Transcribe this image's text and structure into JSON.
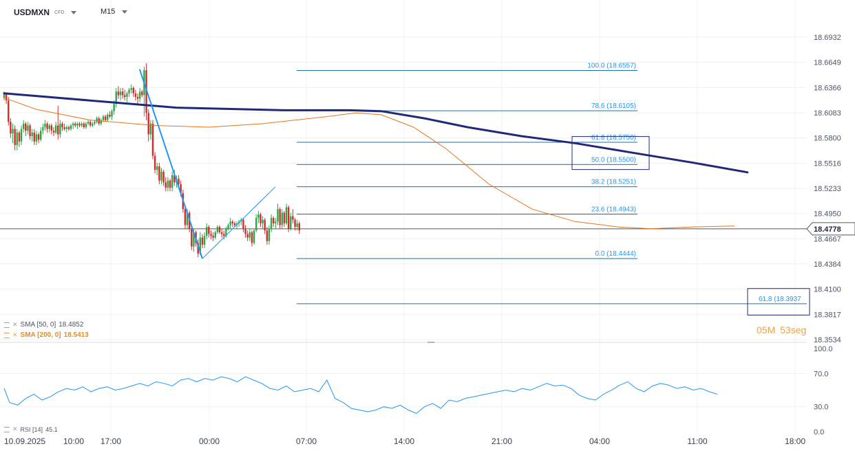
{
  "header": {
    "symbol": "USDMXN",
    "symbol_type": "CFD",
    "timeframe": "M15"
  },
  "indicators": {
    "sma50_label": "SMA [50, 0]",
    "sma50_value": "18.4852",
    "sma200_label": "SMA [200, 0]",
    "sma200_value": "18.5413",
    "rsi_label": "RSI [14]",
    "rsi_value": "45.1"
  },
  "countdown": {
    "minutes": "05",
    "minutes_unit": "M",
    "seconds": "53",
    "seconds_unit": "seg"
  },
  "colors": {
    "candle_up": "#27a844",
    "candle_down": "#d12a2a",
    "sma50": "#e8731a",
    "sma200": "#1e2a78",
    "fib_line": "#1f6fa8",
    "fib_label": "#2196f3",
    "rsi_line": "#2196f3",
    "price_line": "#555555"
  },
  "chart_data": {
    "type": "candlestick",
    "symbol": "USDMXN",
    "timeframe": "M15",
    "current_price": "18.4778",
    "ylim": [
      18.3534,
      18.6932
    ],
    "y_ticks": [
      "18.6932",
      "18.6649",
      "18.6366",
      "18.6083",
      "18.5800",
      "18.5516",
      "18.5233",
      "18.4950",
      "18.4667",
      "18.4384",
      "18.4100",
      "18.3817",
      "18.3534"
    ],
    "x_ticks": [
      "10.09.2025",
      "10:00",
      "17:00",
      "00:00",
      "07:00",
      "14:00",
      "21:00",
      "04:00",
      "11:00",
      "18:00"
    ],
    "rsi_ticks": [
      "100.0",
      "70.0",
      "30.0",
      "0.0"
    ],
    "rsi_ylim": [
      0,
      100
    ],
    "fibonacci": [
      {
        "label": "100.0 (18.6557)",
        "level": 18.6557
      },
      {
        "label": "78.6 (18.6105)",
        "level": 18.6105
      },
      {
        "label": "61.8 (18.5750)",
        "level": 18.575
      },
      {
        "label": "50.0 (18.5500)",
        "level": 18.55
      },
      {
        "label": "38.2 (18.5251)",
        "level": 18.5251
      },
      {
        "label": "23.6 (18.4943)",
        "level": 18.4943
      },
      {
        "label": "0.0 (18.4444)",
        "level": 18.4444
      },
      {
        "label": "61.8 (18.3937",
        "level": 18.3937
      }
    ],
    "candles": [
      [
        18.625,
        18.632,
        18.622,
        18.629
      ],
      [
        18.629,
        18.63,
        18.618,
        18.622
      ],
      [
        18.622,
        18.626,
        18.594,
        18.598
      ],
      [
        18.598,
        18.602,
        18.58,
        18.585
      ],
      [
        18.585,
        18.596,
        18.574,
        18.59
      ],
      [
        18.59,
        18.594,
        18.566,
        18.572
      ],
      [
        18.572,
        18.59,
        18.566,
        18.586
      ],
      [
        18.586,
        18.588,
        18.57,
        18.576
      ],
      [
        18.576,
        18.594,
        18.572,
        18.59
      ],
      [
        18.59,
        18.6,
        18.586,
        18.596
      ],
      [
        18.596,
        18.598,
        18.582,
        18.588
      ],
      [
        18.588,
        18.598,
        18.584,
        18.594
      ],
      [
        18.594,
        18.596,
        18.578,
        18.582
      ],
      [
        18.582,
        18.59,
        18.576,
        18.586
      ],
      [
        18.586,
        18.59,
        18.572,
        18.576
      ],
      [
        18.576,
        18.588,
        18.572,
        18.584
      ],
      [
        18.584,
        18.586,
        18.574,
        18.578
      ],
      [
        18.578,
        18.592,
        18.576,
        18.588
      ],
      [
        18.588,
        18.596,
        18.584,
        18.592
      ],
      [
        18.592,
        18.6,
        18.588,
        18.596
      ],
      [
        18.596,
        18.598,
        18.586,
        18.59
      ],
      [
        18.59,
        18.596,
        18.586,
        18.594
      ],
      [
        18.594,
        18.596,
        18.584,
        18.588
      ],
      [
        18.588,
        18.592,
        18.582,
        18.586
      ],
      [
        18.586,
        18.598,
        18.584,
        18.594
      ],
      [
        18.594,
        18.616,
        18.578,
        18.584
      ],
      [
        18.584,
        18.6,
        18.58,
        18.596
      ],
      [
        18.596,
        18.598,
        18.588,
        18.592
      ],
      [
        18.592,
        18.596,
        18.588,
        18.59
      ],
      [
        18.59,
        18.594,
        18.586,
        18.592
      ],
      [
        18.592,
        18.594,
        18.588,
        18.59
      ],
      [
        18.59,
        18.596,
        18.588,
        18.594
      ],
      [
        18.594,
        18.598,
        18.59,
        18.596
      ],
      [
        18.596,
        18.598,
        18.592,
        18.594
      ],
      [
        18.594,
        18.598,
        18.59,
        18.596
      ],
      [
        18.596,
        18.598,
        18.592,
        18.594
      ],
      [
        18.594,
        18.598,
        18.592,
        18.596
      ],
      [
        18.596,
        18.598,
        18.59,
        18.592
      ],
      [
        18.592,
        18.598,
        18.59,
        18.596
      ],
      [
        18.596,
        18.6,
        18.594,
        18.598
      ],
      [
        18.598,
        18.6,
        18.592,
        18.594
      ],
      [
        18.594,
        18.598,
        18.592,
        18.596
      ],
      [
        18.596,
        18.6,
        18.594,
        18.598
      ],
      [
        18.598,
        18.604,
        18.596,
        18.602
      ],
      [
        18.602,
        18.604,
        18.594,
        18.596
      ],
      [
        18.596,
        18.602,
        18.594,
        18.6
      ],
      [
        18.6,
        18.606,
        18.598,
        18.604
      ],
      [
        18.604,
        18.606,
        18.598,
        18.6
      ],
      [
        18.6,
        18.608,
        18.598,
        18.606
      ],
      [
        18.606,
        18.61,
        18.602,
        18.604
      ],
      [
        18.604,
        18.612,
        18.6,
        18.61
      ],
      [
        18.61,
        18.622,
        18.606,
        18.618
      ],
      [
        18.618,
        18.636,
        18.614,
        18.632
      ],
      [
        18.632,
        18.638,
        18.624,
        18.628
      ],
      [
        18.628,
        18.636,
        18.622,
        18.632
      ],
      [
        18.632,
        18.636,
        18.624,
        18.628
      ],
      [
        18.628,
        18.634,
        18.622,
        18.626
      ],
      [
        18.626,
        18.632,
        18.62,
        18.63
      ],
      [
        18.63,
        18.636,
        18.626,
        18.634
      ],
      [
        18.634,
        18.64,
        18.63,
        18.636
      ],
      [
        18.636,
        18.638,
        18.626,
        18.63
      ],
      [
        18.63,
        18.634,
        18.622,
        18.626
      ],
      [
        18.626,
        18.63,
        18.618,
        18.624
      ],
      [
        18.624,
        18.636,
        18.62,
        18.632
      ],
      [
        18.632,
        18.634,
        18.626,
        18.628
      ],
      [
        18.628,
        18.66,
        18.604,
        18.656
      ],
      [
        18.656,
        18.664,
        18.6,
        18.608
      ],
      [
        18.608,
        18.612,
        18.576,
        18.584
      ],
      [
        18.584,
        18.6,
        18.578,
        18.596
      ],
      [
        18.596,
        18.6,
        18.556,
        18.56
      ],
      [
        18.56,
        18.564,
        18.54,
        18.544
      ],
      [
        18.544,
        18.552,
        18.538,
        18.548
      ],
      [
        18.548,
        18.552,
        18.528,
        18.532
      ],
      [
        18.532,
        18.546,
        18.528,
        18.542
      ],
      [
        18.542,
        18.544,
        18.526,
        18.53
      ],
      [
        18.53,
        18.536,
        18.52,
        18.524
      ],
      [
        18.524,
        18.536,
        18.52,
        18.532
      ],
      [
        18.532,
        18.534,
        18.52,
        18.524
      ],
      [
        18.524,
        18.542,
        18.52,
        18.538
      ],
      [
        18.538,
        18.544,
        18.526,
        18.53
      ],
      [
        18.53,
        18.538,
        18.524,
        18.534
      ],
      [
        18.534,
        18.538,
        18.524,
        18.528
      ],
      [
        18.528,
        18.532,
        18.514,
        18.518
      ],
      [
        18.518,
        18.522,
        18.496,
        18.5
      ],
      [
        18.5,
        18.504,
        18.478,
        18.482
      ],
      [
        18.482,
        18.5,
        18.478,
        18.496
      ],
      [
        18.496,
        18.498,
        18.474,
        18.478
      ],
      [
        18.478,
        18.482,
        18.454,
        18.458
      ],
      [
        18.458,
        18.478,
        18.452,
        18.474
      ],
      [
        18.474,
        18.476,
        18.458,
        18.462
      ],
      [
        18.462,
        18.466,
        18.446,
        18.45
      ],
      [
        18.45,
        18.474,
        18.448,
        18.468
      ],
      [
        18.468,
        18.472,
        18.456,
        18.46
      ],
      [
        18.46,
        18.474,
        18.456,
        18.47
      ],
      [
        18.47,
        18.484,
        18.466,
        18.48
      ],
      [
        18.48,
        18.482,
        18.468,
        18.472
      ],
      [
        18.472,
        18.476,
        18.466,
        18.47
      ],
      [
        18.47,
        18.474,
        18.464,
        18.468
      ],
      [
        18.468,
        18.476,
        18.466,
        18.474
      ],
      [
        18.474,
        18.482,
        18.472,
        18.48
      ],
      [
        18.48,
        18.482,
        18.472,
        18.474
      ],
      [
        18.474,
        18.478,
        18.468,
        18.472
      ],
      [
        18.472,
        18.476,
        18.466,
        18.47
      ],
      [
        18.47,
        18.48,
        18.468,
        18.478
      ],
      [
        18.478,
        18.484,
        18.476,
        18.482
      ],
      [
        18.482,
        18.49,
        18.478,
        18.486
      ],
      [
        18.486,
        18.488,
        18.48,
        18.484
      ],
      [
        18.484,
        18.486,
        18.48,
        18.482
      ],
      [
        18.482,
        18.486,
        18.478,
        18.484
      ],
      [
        18.484,
        18.488,
        18.48,
        18.486
      ],
      [
        18.486,
        18.49,
        18.482,
        18.488
      ],
      [
        18.488,
        18.49,
        18.474,
        18.478
      ],
      [
        18.478,
        18.482,
        18.468,
        18.472
      ],
      [
        18.472,
        18.476,
        18.464,
        18.468
      ],
      [
        18.468,
        18.478,
        18.464,
        18.474
      ],
      [
        18.474,
        18.476,
        18.458,
        18.462
      ],
      [
        18.462,
        18.478,
        18.46,
        18.476
      ],
      [
        18.476,
        18.494,
        18.474,
        18.49
      ],
      [
        18.49,
        18.498,
        18.484,
        18.494
      ],
      [
        18.494,
        18.496,
        18.48,
        18.484
      ],
      [
        18.484,
        18.492,
        18.478,
        18.488
      ],
      [
        18.488,
        18.49,
        18.472,
        18.476
      ],
      [
        18.476,
        18.48,
        18.46,
        18.464
      ],
      [
        18.464,
        18.482,
        18.46,
        18.478
      ],
      [
        18.478,
        18.494,
        18.474,
        18.49
      ],
      [
        18.49,
        18.492,
        18.48,
        18.484
      ],
      [
        18.484,
        18.49,
        18.478,
        18.486
      ],
      [
        18.486,
        18.506,
        18.482,
        18.5
      ],
      [
        18.5,
        18.502,
        18.478,
        18.482
      ],
      [
        18.482,
        18.5,
        18.478,
        18.496
      ],
      [
        18.496,
        18.498,
        18.48,
        18.484
      ],
      [
        18.484,
        18.506,
        18.482,
        18.502
      ],
      [
        18.502,
        18.504,
        18.474,
        18.478
      ],
      [
        18.478,
        18.496,
        18.476,
        18.492
      ],
      [
        18.492,
        18.5,
        18.484,
        18.488
      ],
      [
        18.488,
        18.49,
        18.476,
        18.48
      ],
      [
        18.48,
        18.488,
        18.476,
        18.484
      ],
      [
        18.484,
        18.486,
        18.472,
        18.476
      ]
    ],
    "sma50": [
      [
        0,
        18.625
      ],
      [
        15,
        18.612
      ],
      [
        40,
        18.6
      ],
      [
        70,
        18.594
      ],
      [
        95,
        18.592
      ],
      [
        120,
        18.596
      ],
      [
        150,
        18.604
      ],
      [
        163,
        18.608
      ],
      [
        175,
        18.606
      ],
      [
        190,
        18.592
      ],
      [
        205,
        18.568
      ],
      [
        225,
        18.528
      ],
      [
        245,
        18.5
      ],
      [
        265,
        18.486
      ],
      [
        285,
        18.48
      ],
      [
        300,
        18.478
      ],
      [
        320,
        18.48
      ],
      [
        339,
        18.481
      ]
    ],
    "sma200": [
      [
        0,
        18.63
      ],
      [
        40,
        18.622
      ],
      [
        80,
        18.614
      ],
      [
        130,
        18.611
      ],
      [
        160,
        18.611
      ],
      [
        175,
        18.61
      ],
      [
        195,
        18.602
      ],
      [
        215,
        18.592
      ],
      [
        240,
        18.582
      ],
      [
        265,
        18.574
      ],
      [
        290,
        18.564
      ],
      [
        320,
        18.552
      ],
      [
        345,
        18.5413
      ]
    ],
    "rsi": [
      [
        0,
        52
      ],
      [
        4,
        35
      ],
      [
        10,
        32
      ],
      [
        16,
        40
      ],
      [
        22,
        45
      ],
      [
        28,
        38
      ],
      [
        34,
        42
      ],
      [
        40,
        48
      ],
      [
        46,
        52
      ],
      [
        52,
        50
      ],
      [
        58,
        54
      ],
      [
        64,
        48
      ],
      [
        70,
        52
      ],
      [
        76,
        54
      ],
      [
        82,
        50
      ],
      [
        88,
        52
      ],
      [
        94,
        55
      ],
      [
        100,
        58
      ],
      [
        106,
        55
      ],
      [
        112,
        60
      ],
      [
        118,
        58
      ],
      [
        124,
        55
      ],
      [
        130,
        62
      ],
      [
        136,
        64
      ],
      [
        142,
        60
      ],
      [
        148,
        64
      ],
      [
        154,
        62
      ],
      [
        160,
        66
      ],
      [
        166,
        64
      ],
      [
        172,
        60
      ],
      [
        178,
        66
      ],
      [
        184,
        62
      ],
      [
        190,
        58
      ],
      [
        196,
        52
      ],
      [
        202,
        50
      ],
      [
        208,
        55
      ],
      [
        214,
        48
      ],
      [
        220,
        50
      ],
      [
        226,
        52
      ],
      [
        232,
        48
      ],
      [
        238,
        62
      ],
      [
        244,
        40
      ],
      [
        250,
        35
      ],
      [
        256,
        28
      ],
      [
        262,
        26
      ],
      [
        268,
        24
      ],
      [
        274,
        26
      ],
      [
        280,
        30
      ],
      [
        286,
        28
      ],
      [
        292,
        32
      ],
      [
        298,
        26
      ],
      [
        304,
        22
      ],
      [
        310,
        30
      ],
      [
        316,
        34
      ],
      [
        322,
        28
      ],
      [
        328,
        38
      ],
      [
        334,
        36
      ],
      [
        340,
        40
      ],
      [
        346,
        42
      ],
      [
        352,
        44
      ],
      [
        358,
        46
      ],
      [
        364,
        48
      ],
      [
        370,
        50
      ],
      [
        376,
        48
      ],
      [
        382,
        52
      ],
      [
        388,
        50
      ],
      [
        394,
        54
      ],
      [
        400,
        58
      ],
      [
        406,
        55
      ],
      [
        412,
        56
      ],
      [
        418,
        52
      ],
      [
        424,
        44
      ],
      [
        430,
        40
      ],
      [
        436,
        38
      ],
      [
        442,
        45
      ],
      [
        448,
        50
      ],
      [
        454,
        56
      ],
      [
        460,
        60
      ],
      [
        466,
        52
      ],
      [
        472,
        48
      ],
      [
        478,
        55
      ],
      [
        484,
        58
      ],
      [
        490,
        56
      ],
      [
        496,
        52
      ],
      [
        502,
        54
      ],
      [
        508,
        50
      ],
      [
        514,
        52
      ],
      [
        520,
        48
      ],
      [
        526,
        45
      ]
    ],
    "trendline_down": {
      "start": {
        "price": 18.6557,
        "candle_index": 63.5
      },
      "end": {
        "price": 18.4444,
        "candle_index": 92
      }
    },
    "trendline_up": {
      "start": {
        "price": 18.4444,
        "candle_index": 92
      },
      "end": {
        "price": 18.5251,
        "candle_index": 124
      }
    }
  }
}
